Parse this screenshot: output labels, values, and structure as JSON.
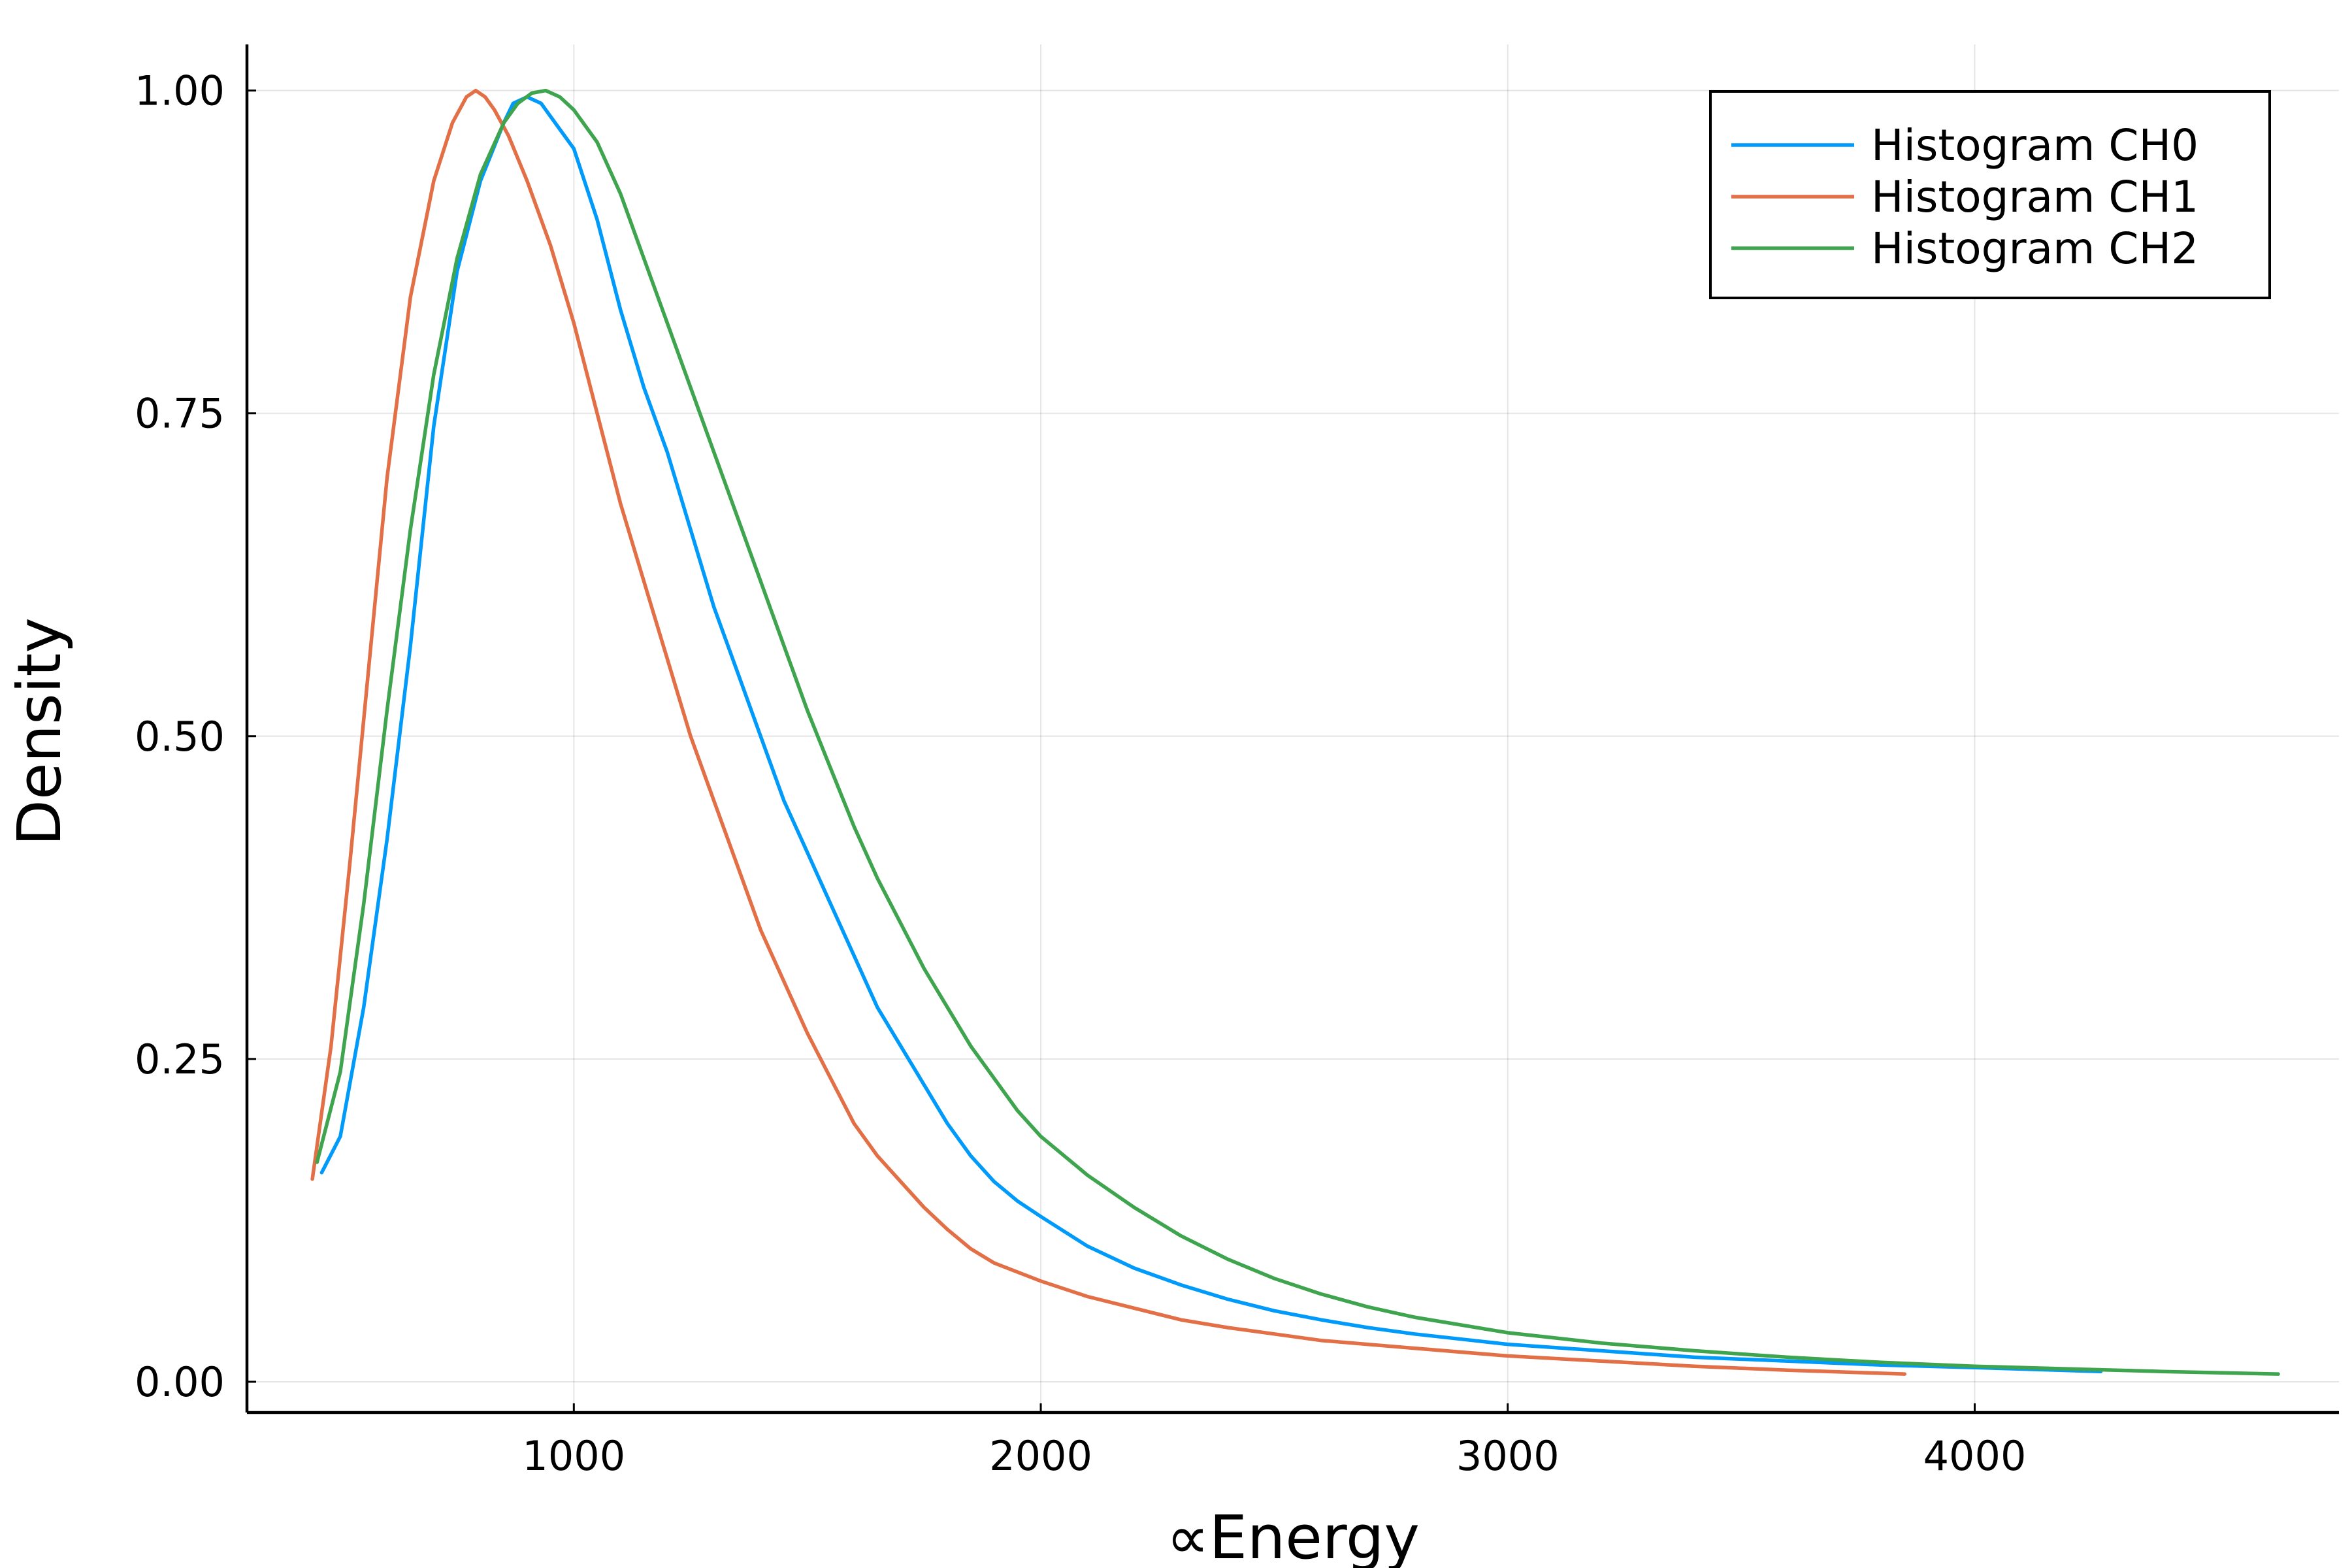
{
  "chart_data": {
    "type": "line",
    "title": "",
    "xlabel": "∝Energy",
    "ylabel": "Density",
    "xlim": [
      300,
      4780
    ],
    "ylim": [
      -0.0238,
      1.0357
    ],
    "xticks": [
      1000,
      2000,
      3000,
      4000
    ],
    "xtick_labels": [
      "1000",
      "2000",
      "3000",
      "4000"
    ],
    "yticks": [
      0,
      0.25,
      0.5,
      0.75,
      1.0
    ],
    "ytick_labels": [
      "0.00",
      "0.25",
      "0.50",
      "0.75",
      "1.00"
    ],
    "grid": true,
    "legend_position": "top-right",
    "series": [
      {
        "name": "Histogram CH0",
        "color": "#009AFA",
        "x": [
          460,
          500,
          550,
          600,
          650,
          700,
          750,
          800,
          850,
          870,
          900,
          930,
          960,
          1000,
          1050,
          1100,
          1150,
          1200,
          1250,
          1300,
          1350,
          1400,
          1450,
          1500,
          1550,
          1600,
          1650,
          1700,
          1750,
          1800,
          1850,
          1900,
          1950,
          2000,
          2100,
          2200,
          2300,
          2400,
          2500,
          2600,
          2700,
          2800,
          2900,
          3000,
          3200,
          3400,
          3600,
          3800,
          4000,
          4270
        ],
        "y": [
          0.162,
          0.19,
          0.29,
          0.42,
          0.57,
          0.74,
          0.86,
          0.93,
          0.975,
          0.99,
          0.995,
          0.99,
          0.975,
          0.955,
          0.9,
          0.83,
          0.77,
          0.72,
          0.66,
          0.6,
          0.55,
          0.5,
          0.45,
          0.41,
          0.37,
          0.33,
          0.29,
          0.26,
          0.23,
          0.2,
          0.175,
          0.155,
          0.14,
          0.128,
          0.105,
          0.088,
          0.075,
          0.064,
          0.055,
          0.048,
          0.042,
          0.037,
          0.033,
          0.029,
          0.024,
          0.019,
          0.016,
          0.013,
          0.011,
          0.008
        ]
      },
      {
        "name": "Histogram CH1",
        "color": "#E26F46",
        "x": [
          440,
          480,
          520,
          560,
          600,
          650,
          700,
          740,
          770,
          790,
          810,
          830,
          860,
          900,
          950,
          1000,
          1050,
          1100,
          1150,
          1200,
          1250,
          1300,
          1350,
          1400,
          1450,
          1500,
          1550,
          1600,
          1650,
          1700,
          1750,
          1800,
          1850,
          1900,
          2000,
          2100,
          2200,
          2300,
          2400,
          2500,
          2600,
          2800,
          3000,
          3200,
          3400,
          3600,
          3850
        ],
        "y": [
          0.157,
          0.26,
          0.4,
          0.55,
          0.7,
          0.84,
          0.93,
          0.975,
          0.995,
          1.0,
          0.995,
          0.985,
          0.965,
          0.93,
          0.88,
          0.82,
          0.75,
          0.68,
          0.62,
          0.56,
          0.5,
          0.45,
          0.4,
          0.35,
          0.31,
          0.27,
          0.235,
          0.2,
          0.175,
          0.155,
          0.135,
          0.118,
          0.103,
          0.092,
          0.078,
          0.066,
          0.057,
          0.048,
          0.042,
          0.037,
          0.032,
          0.026,
          0.02,
          0.016,
          0.012,
          0.009,
          0.006
        ]
      },
      {
        "name": "Histogram CH2",
        "color": "#3EA44E",
        "x": [
          450,
          500,
          550,
          600,
          650,
          700,
          750,
          800,
          850,
          880,
          910,
          940,
          970,
          1000,
          1050,
          1100,
          1150,
          1200,
          1250,
          1300,
          1350,
          1400,
          1450,
          1500,
          1550,
          1600,
          1650,
          1700,
          1750,
          1800,
          1850,
          1900,
          1950,
          2000,
          2100,
          2200,
          2300,
          2400,
          2500,
          2600,
          2700,
          2800,
          3000,
          3200,
          3400,
          3600,
          3800,
          4000,
          4200,
          4400,
          4650
        ],
        "y": [
          0.17,
          0.24,
          0.37,
          0.52,
          0.66,
          0.78,
          0.87,
          0.935,
          0.975,
          0.99,
          0.998,
          1.0,
          0.995,
          0.985,
          0.96,
          0.92,
          0.87,
          0.82,
          0.77,
          0.72,
          0.67,
          0.62,
          0.57,
          0.52,
          0.475,
          0.43,
          0.39,
          0.355,
          0.32,
          0.29,
          0.26,
          0.235,
          0.21,
          0.19,
          0.16,
          0.135,
          0.113,
          0.095,
          0.08,
          0.068,
          0.058,
          0.05,
          0.038,
          0.03,
          0.024,
          0.019,
          0.015,
          0.012,
          0.01,
          0.008,
          0.006
        ]
      }
    ]
  }
}
